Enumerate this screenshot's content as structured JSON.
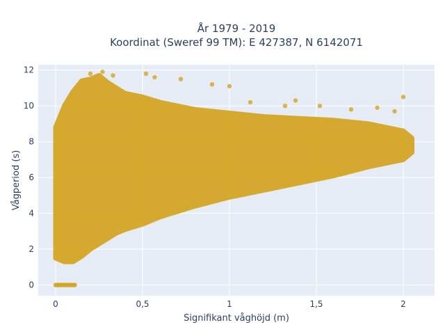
{
  "chart_data": {
    "type": "scatter",
    "title_lines": [
      "År 1979 - 2019",
      "Koordinat (Sweref 99 TM): E 427387, N 6142071"
    ],
    "xlabel": "Signifikant våghöjd (m)",
    "ylabel": "Vågperiod (s)",
    "xlim": [
      -0.1,
      2.18
    ],
    "ylim": [
      -0.6,
      12.3
    ],
    "x_ticks": [
      0,
      0.5,
      1,
      1.5,
      2
    ],
    "x_tick_labels": [
      "0",
      "0,5",
      "1",
      "1,5",
      "2"
    ],
    "y_ticks": [
      0,
      2,
      4,
      6,
      8,
      10,
      12
    ],
    "y_tick_labels": [
      "0",
      "2",
      "4",
      "6",
      "8",
      "10",
      "12"
    ],
    "grid": true,
    "background": "#e5ecf6",
    "marker_color": "#d4a520",
    "envelope": {
      "x": [
        0.0,
        0.05,
        0.1,
        0.15,
        0.2,
        0.25,
        0.3,
        0.35,
        0.4,
        0.5,
        0.6,
        0.7,
        0.8,
        1.0,
        1.2,
        1.4,
        1.6,
        1.8,
        2.0,
        2.05
      ],
      "y_low": [
        1.5,
        1.3,
        1.3,
        1.6,
        2.0,
        2.3,
        2.6,
        2.9,
        3.1,
        3.4,
        3.8,
        4.1,
        4.4,
        4.9,
        5.3,
        5.7,
        6.1,
        6.6,
        7.0,
        7.4
      ],
      "y_high": [
        8.8,
        10.0,
        10.8,
        11.4,
        11.5,
        11.7,
        11.3,
        11.0,
        10.7,
        10.5,
        10.2,
        10.0,
        9.8,
        9.6,
        9.4,
        9.3,
        9.2,
        9.0,
        8.6,
        8.2
      ]
    },
    "zero_period_points": {
      "x": [
        0.0,
        0.01,
        0.02,
        0.03,
        0.04,
        0.05,
        0.06,
        0.07,
        0.08,
        0.09,
        0.1,
        0.11
      ],
      "y": [
        0,
        0,
        0,
        0,
        0,
        0,
        0,
        0,
        0,
        0,
        0,
        0
      ]
    },
    "outliers": {
      "x": [
        0.2,
        0.27,
        0.33,
        0.52,
        0.57,
        0.72,
        0.9,
        1.0,
        1.12,
        1.32,
        1.38,
        1.52,
        1.7,
        1.85,
        1.95,
        2.0
      ],
      "y": [
        11.8,
        11.9,
        11.7,
        11.8,
        11.6,
        11.5,
        11.2,
        11.1,
        10.2,
        10.0,
        10.3,
        10.0,
        9.8,
        9.9,
        9.7,
        10.5
      ]
    }
  }
}
